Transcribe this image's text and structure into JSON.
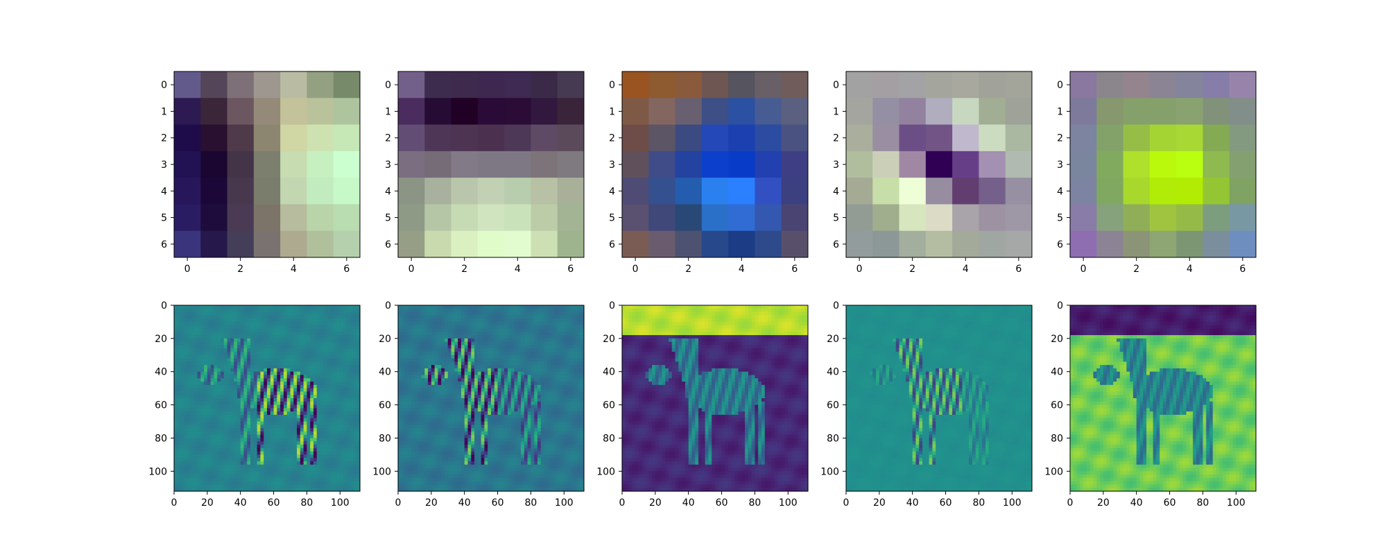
{
  "chart_data": [
    {
      "type": "heatmap",
      "title": "",
      "xlabel": "",
      "ylabel": "",
      "xlim": [
        -0.5,
        6.5
      ],
      "ylim": [
        6.5,
        -0.5
      ],
      "xticks": [
        0,
        2,
        4,
        6
      ],
      "yticks": [
        0,
        1,
        2,
        3,
        4,
        5,
        6
      ],
      "cells": [
        [
          "#625a8a",
          "#554558",
          "#7d7076",
          "#9d9790",
          "#b9bca2",
          "#93a182",
          "#778b6a"
        ],
        [
          "#2e1a52",
          "#3a2638",
          "#6c5660",
          "#958a7a",
          "#c3c29a",
          "#bac29c",
          "#adc49e"
        ],
        [
          "#1e0c4a",
          "#290f30",
          "#4f3a4a",
          "#8c8570",
          "#d0d6a4",
          "#cde2b0",
          "#c5e8b6"
        ],
        [
          "#221254",
          "#1a0630",
          "#433448",
          "#7c7e6e",
          "#c7dcb0",
          "#c6f0c0",
          "#ccffd0"
        ],
        [
          "#28165a",
          "#1c0838",
          "#48384e",
          "#7a7c6c",
          "#c3d6b2",
          "#c2ecc0",
          "#c6f8c8"
        ],
        [
          "#2a1c62",
          "#1e0c3c",
          "#4a3a54",
          "#7c7468",
          "#b7bc9e",
          "#b9d4a8",
          "#b9dcb0"
        ],
        [
          "#3a347c",
          "#26184a",
          "#443e58",
          "#7a7270",
          "#aeaa90",
          "#b1c09c",
          "#b5d0ac"
        ]
      ]
    },
    {
      "type": "heatmap",
      "title": "",
      "xlabel": "",
      "ylabel": "",
      "xlim": [
        -0.5,
        6.5
      ],
      "ylim": [
        6.5,
        -0.5
      ],
      "xticks": [
        0,
        2,
        4,
        6
      ],
      "yticks": [
        0,
        1,
        2,
        3,
        4,
        5,
        6
      ],
      "cells": [
        [
          "#73608a",
          "#3e2c4e",
          "#3e2a4c",
          "#3e2850",
          "#3e2a52",
          "#3a2a48",
          "#463a52"
        ],
        [
          "#4a2c5e",
          "#260c34",
          "#200024",
          "#2a0a36",
          "#2a0c36",
          "#32183e",
          "#3a243a"
        ],
        [
          "#624e74",
          "#4e3656",
          "#4c3452",
          "#4c3050",
          "#4e3858",
          "#5e4a64",
          "#5a4a5a"
        ],
        [
          "#7a6e80",
          "#766c78",
          "#827a86",
          "#7e7884",
          "#7e7884",
          "#7c7478",
          "#7e7a80"
        ],
        [
          "#8c9486",
          "#a8b09e",
          "#bac6ac",
          "#c2d0b4",
          "#b8ccae",
          "#b8c0a6",
          "#a8b09a"
        ],
        [
          "#8e9a86",
          "#b5c6a6",
          "#c6dab4",
          "#d0e4c0",
          "#cae2ba",
          "#bccca8",
          "#a2b494"
        ],
        [
          "#979e86",
          "#c9daae",
          "#dbf0c0",
          "#e0fcc8",
          "#e2fcd0",
          "#cce0b4",
          "#9eb48e"
        ]
      ]
    },
    {
      "type": "heatmap",
      "title": "",
      "xlabel": "",
      "ylabel": "",
      "xlim": [
        -0.5,
        6.5
      ],
      "ylim": [
        6.5,
        -0.5
      ],
      "xticks": [
        0,
        2,
        4,
        6
      ],
      "yticks": [
        0,
        1,
        2,
        3,
        4,
        5,
        6
      ],
      "cells": [
        [
          "#9a5422",
          "#8e5a30",
          "#8a5a3c",
          "#6e5652",
          "#56545e",
          "#686066",
          "#705c5a"
        ],
        [
          "#7e5a46",
          "#846660",
          "#686070",
          "#3e4e86",
          "#2c50a2",
          "#485c94",
          "#5c6080"
        ],
        [
          "#6e4c48",
          "#5c5566",
          "#3c4a82",
          "#2448b8",
          "#1c40b0",
          "#2c4ca2",
          "#4a5282"
        ],
        [
          "#60505c",
          "#404c88",
          "#2442a0",
          "#0c40cc",
          "#083cc8",
          "#2240b0",
          "#3e3e84"
        ],
        [
          "#4e4c74",
          "#34508e",
          "#245cae",
          "#2a80ee",
          "#2a80fe",
          "#3250c2",
          "#3c4080"
        ],
        [
          "#5a5070",
          "#40487a",
          "#2a4876",
          "#2a70c8",
          "#306cd4",
          "#3458b0",
          "#4a4472"
        ],
        [
          "#7a5c54",
          "#6a5c6e",
          "#4c5270",
          "#28488c",
          "#1c3c86",
          "#2e4a8a",
          "#58506a"
        ]
      ]
    },
    {
      "type": "heatmap",
      "title": "",
      "xlabel": "",
      "ylabel": "",
      "xlim": [
        -0.5,
        6.5
      ],
      "ylim": [
        6.5,
        -0.5
      ],
      "xticks": [
        0,
        2,
        4,
        6
      ],
      "yticks": [
        0,
        1,
        2,
        3,
        4,
        5,
        6
      ],
      "cells": [
        [
          "#a2a2a2",
          "#a39fa3",
          "#a3a2a4",
          "#a4a69d",
          "#a8a89e",
          "#a1a39a",
          "#a3a59b"
        ],
        [
          "#a5a5a0",
          "#958fa3",
          "#9282a0",
          "#b0adbe",
          "#c8d8c0",
          "#a2ae94",
          "#9ea298"
        ],
        [
          "#aaae9c",
          "#9a8ea2",
          "#6c4e86",
          "#725486",
          "#c0b8cc",
          "#ccdcc0",
          "#aab8a2"
        ],
        [
          "#b0be9e",
          "#cccfb8",
          "#a088a4",
          "#300054",
          "#663e88",
          "#a490b0",
          "#b0bab0"
        ],
        [
          "#a4aa94",
          "#c8dea8",
          "#eeffd8",
          "#968ea0",
          "#623e70",
          "#74608a",
          "#9690a2"
        ],
        [
          "#929c94",
          "#a0ae8e",
          "#d8e6c0",
          "#dcdcc6",
          "#a8a4aa",
          "#9c92a2",
          "#9e98a6"
        ],
        [
          "#929c9c",
          "#8c9898",
          "#a4ae9e",
          "#b4bca2",
          "#a4aa9a",
          "#a0a6a2",
          "#a6a8a8"
        ]
      ]
    },
    {
      "type": "heatmap",
      "title": "",
      "xlabel": "",
      "ylabel": "",
      "xlim": [
        -0.5,
        6.5
      ],
      "ylim": [
        6.5,
        -0.5
      ],
      "xticks": [
        0,
        2,
        4,
        6
      ],
      "yticks": [
        0,
        1,
        2,
        3,
        4,
        5,
        6
      ],
      "cells": [
        [
          "#8a78a0",
          "#8a868c",
          "#94848e",
          "#8a8494",
          "#84849c",
          "#867ea8",
          "#9884aa"
        ],
        [
          "#7e7a9c",
          "#88986e",
          "#86a06c",
          "#86a06c",
          "#8aa270",
          "#82927a",
          "#828e8a"
        ],
        [
          "#7c84a0",
          "#82a26a",
          "#96be46",
          "#a4d434",
          "#a8d834",
          "#84aa54",
          "#849a80"
        ],
        [
          "#7a869e",
          "#82aa5e",
          "#aee02c",
          "#baf80c",
          "#baff10",
          "#8eba50",
          "#84a070"
        ],
        [
          "#7c84a2",
          "#80a860",
          "#a8d82c",
          "#b0ec08",
          "#b2ec04",
          "#94c634",
          "#80a262"
        ],
        [
          "#8a7ca8",
          "#86a27c",
          "#90ae58",
          "#a0c440",
          "#96ba48",
          "#7c9e7e",
          "#7898a4"
        ],
        [
          "#8e6eb0",
          "#8c8494",
          "#8c9478",
          "#8ea674",
          "#7c9674",
          "#7a8e9e",
          "#6e8ec0"
        ]
      ]
    },
    {
      "type": "heatmap",
      "title": "",
      "xlabel": "",
      "ylabel": "",
      "colormap": "viridis",
      "xlim": [
        0,
        112
      ],
      "ylim": [
        112,
        0
      ],
      "xticks": [
        0,
        20,
        40,
        60,
        80,
        100
      ],
      "yticks": [
        0,
        20,
        40,
        60,
        80,
        100
      ]
    },
    {
      "type": "heatmap",
      "title": "",
      "xlabel": "",
      "ylabel": "",
      "colormap": "viridis",
      "xlim": [
        0,
        112
      ],
      "ylim": [
        112,
        0
      ],
      "xticks": [
        0,
        20,
        40,
        60,
        80,
        100
      ],
      "yticks": [
        0,
        20,
        40,
        60,
        80,
        100
      ]
    },
    {
      "type": "heatmap",
      "title": "",
      "xlabel": "",
      "ylabel": "",
      "colormap": "viridis",
      "xlim": [
        0,
        112
      ],
      "ylim": [
        112,
        0
      ],
      "xticks": [
        0,
        20,
        40,
        60,
        80,
        100
      ],
      "yticks": [
        0,
        20,
        40,
        60,
        80,
        100
      ]
    },
    {
      "type": "heatmap",
      "title": "",
      "xlabel": "",
      "ylabel": "",
      "colormap": "viridis",
      "xlim": [
        0,
        112
      ],
      "ylim": [
        112,
        0
      ],
      "xticks": [
        0,
        20,
        40,
        60,
        80,
        100
      ],
      "yticks": [
        0,
        20,
        40,
        60,
        80,
        100
      ]
    },
    {
      "type": "heatmap",
      "title": "",
      "xlabel": "",
      "ylabel": "",
      "colormap": "viridis",
      "xlim": [
        0,
        112
      ],
      "ylim": [
        112,
        0
      ],
      "xticks": [
        0,
        20,
        40,
        60,
        80,
        100
      ],
      "yticks": [
        0,
        20,
        40,
        60,
        80,
        100
      ]
    }
  ]
}
